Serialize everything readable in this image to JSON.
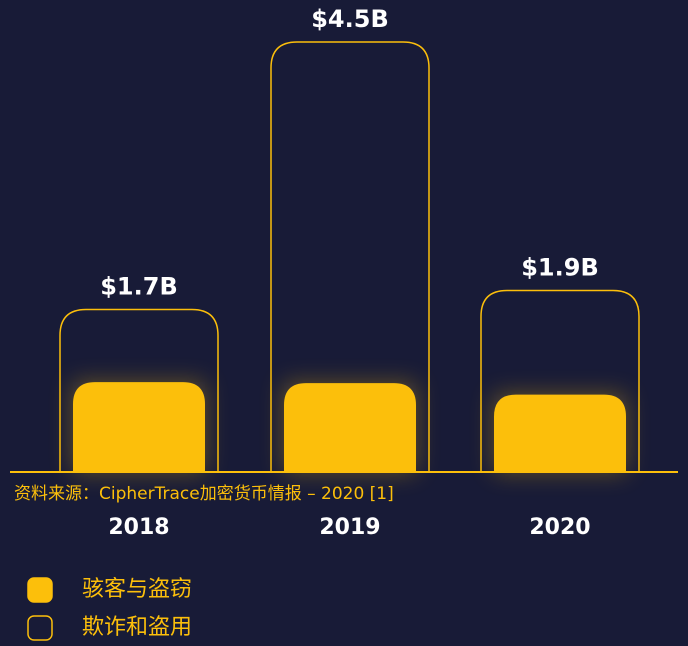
{
  "chart_data": {
    "type": "bar",
    "categories": [
      "2018",
      "2019",
      "2020"
    ],
    "series": [
      {
        "name": "骇客与盗窃",
        "color": "#fcbf0b",
        "values": [
          0.94,
          0.93,
          0.81
        ]
      },
      {
        "name": "欺诈和盗用",
        "color": "#fcbf0b",
        "values": [
          0.76,
          3.57,
          1.09
        ]
      }
    ],
    "totals": [
      1.7,
      4.5,
      1.9
    ],
    "value_labels": [
      "$1.7B",
      "$4.5B",
      "$1.9B"
    ],
    "source": "资料来源：CipherTrace加密货币情报 – 2020 [1]"
  }
}
